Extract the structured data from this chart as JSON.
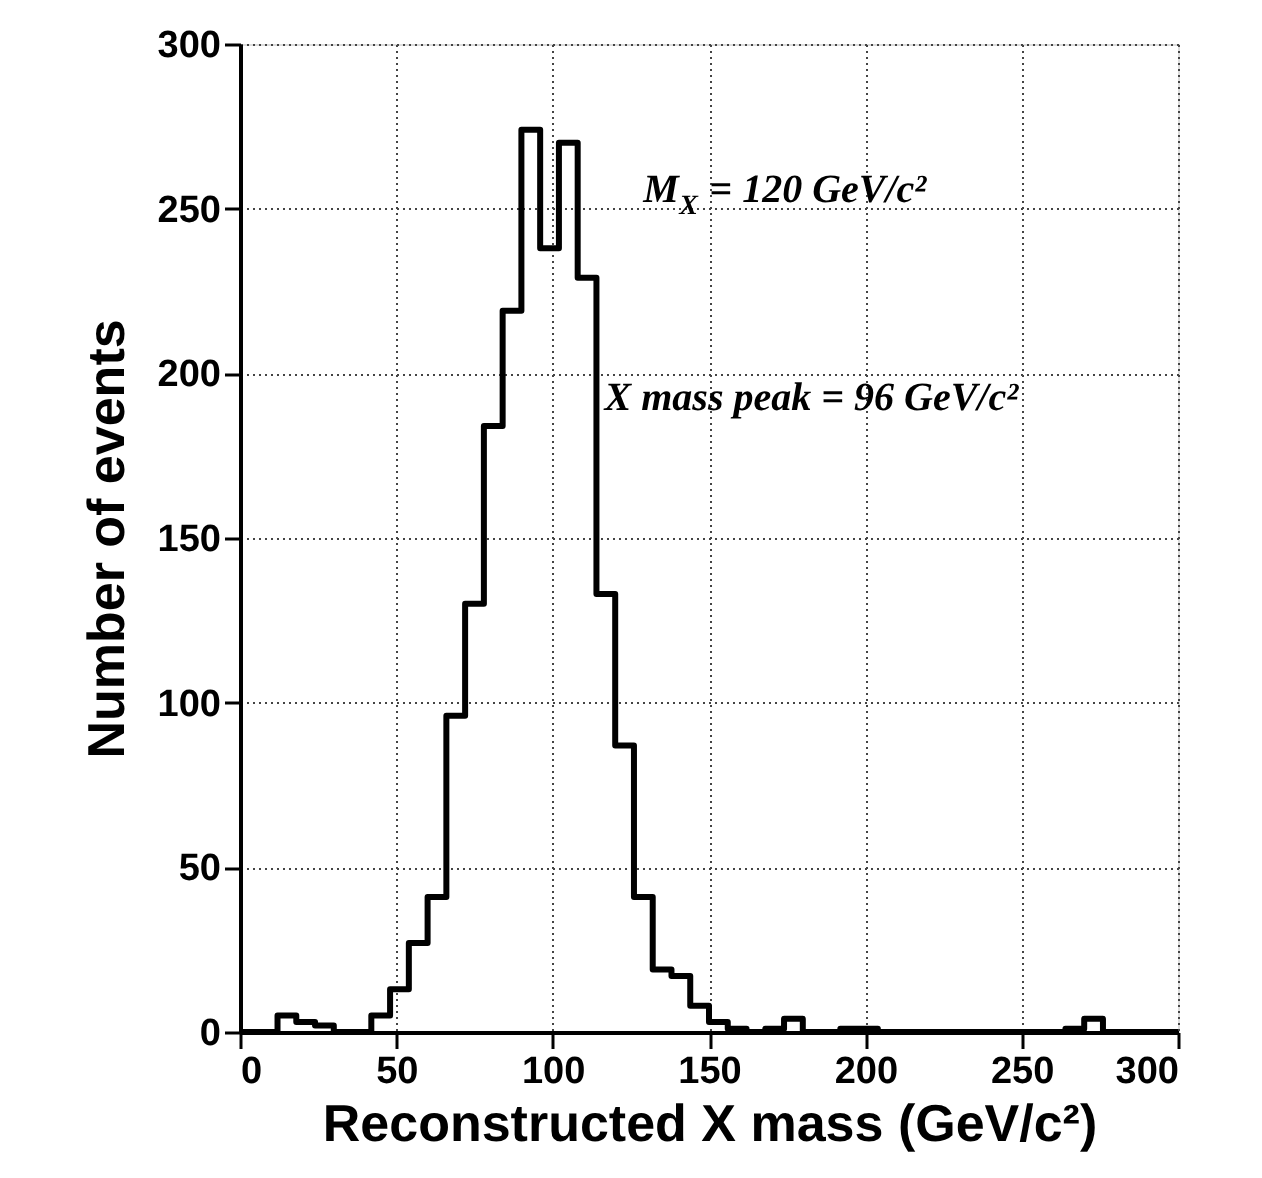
{
  "chart_data": {
    "type": "histogram",
    "xlabel": "Reconstructed X mass (GeV/c²)",
    "ylabel": "Number of events",
    "bins": [
      0,
      6,
      12,
      18,
      24,
      30,
      36,
      42,
      48,
      54,
      60,
      66,
      72,
      78,
      84,
      90,
      96,
      102,
      108,
      114,
      120,
      126,
      132,
      138,
      144,
      150,
      156,
      162,
      168,
      174,
      180,
      186,
      192,
      198,
      204,
      210,
      216,
      222,
      228,
      234,
      240,
      246,
      252,
      258,
      264,
      270,
      276,
      282,
      288,
      294,
      300
    ],
    "values": [
      0,
      0,
      5,
      3,
      2,
      0,
      0,
      5,
      13,
      27,
      41,
      96,
      130,
      184,
      219,
      274,
      238,
      270,
      229,
      133,
      87,
      41,
      19,
      17,
      8,
      3,
      1,
      0,
      1,
      4,
      0,
      0,
      1,
      1,
      0,
      0,
      0,
      0,
      0,
      0,
      0,
      0,
      0,
      0,
      1,
      4,
      0,
      0,
      0,
      0
    ],
    "color": "#000000",
    "xlim": [
      0,
      300
    ],
    "ylim": [
      0,
      300
    ],
    "xticks": [
      0,
      50,
      100,
      150,
      200,
      250,
      300
    ],
    "yticks": [
      0,
      50,
      100,
      150,
      200,
      250,
      300
    ],
    "grid": true,
    "annotations": [
      "M$_{X}$ = 120 GeV/c²",
      "X mass peak = 96 GeV/c²"
    ]
  }
}
